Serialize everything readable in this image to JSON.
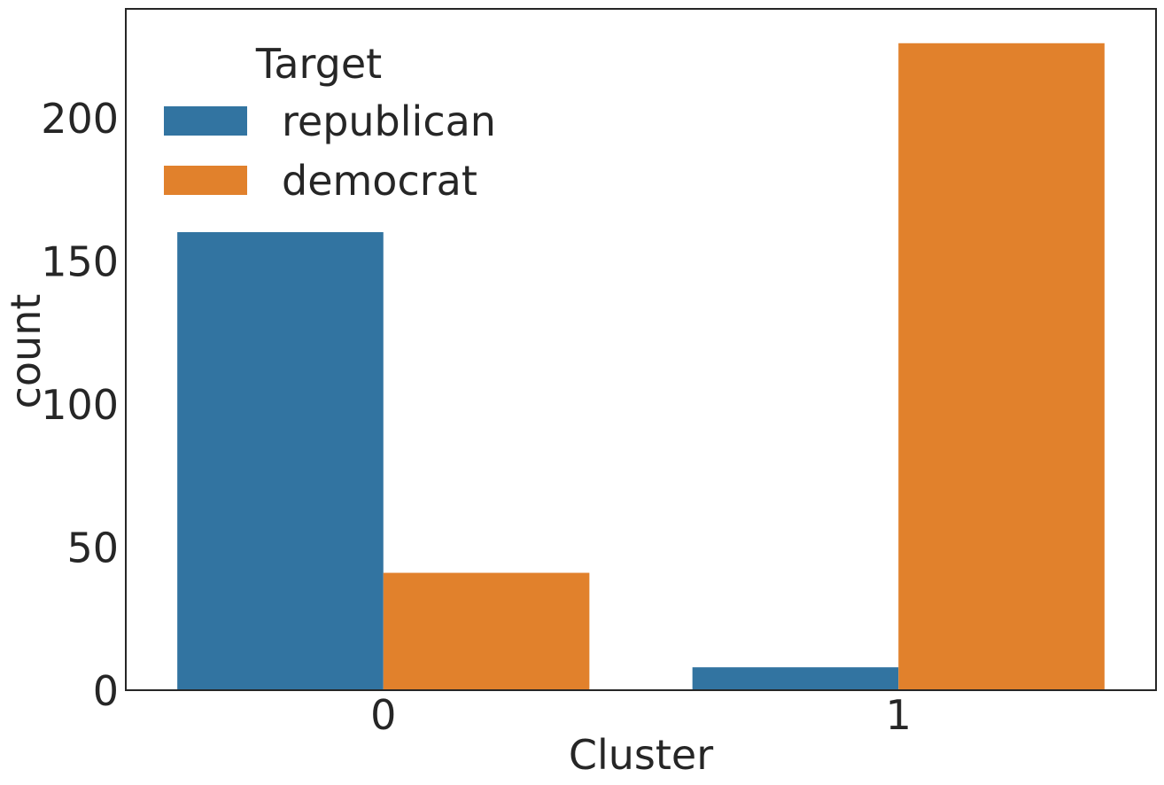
{
  "chart_data": {
    "type": "bar",
    "title": "",
    "xlabel": "Cluster",
    "ylabel": "count",
    "categories": [
      "0",
      "1"
    ],
    "series": [
      {
        "name": "republican",
        "values": [
          160,
          8
        ],
        "color": "#3274a1"
      },
      {
        "name": "democrat",
        "values": [
          41,
          226
        ],
        "color": "#e1812c"
      }
    ],
    "ylim": [
      0,
      238
    ],
    "yticks": [
      0,
      50,
      100,
      150,
      200
    ],
    "legend": {
      "title": "Target",
      "placement": "top-left"
    },
    "grid": false
  }
}
